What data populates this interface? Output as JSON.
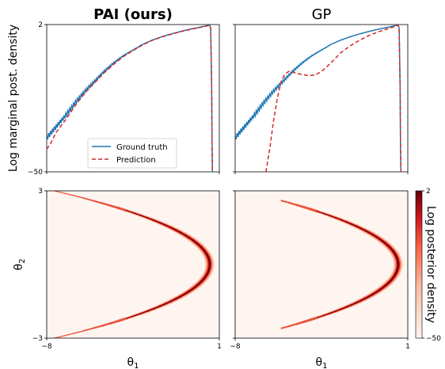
{
  "chart_data": [
    {
      "type": "line",
      "panel": "top-left",
      "title": "PAI (ours)",
      "title_bold": true,
      "ylabel": "Log marginal post. density",
      "xlim": [
        -8,
        1
      ],
      "ylim": [
        -50,
        2
      ],
      "yticks": [
        "2",
        "−50"
      ],
      "legend": {
        "placement": "lower-center",
        "entries": [
          "Ground truth",
          "Prediction"
        ]
      },
      "series": [
        {
          "name": "Ground truth",
          "color": "#1f77b4",
          "style": "solid",
          "x": [
            -8,
            -7.5,
            -7,
            -6.5,
            -6,
            -5.5,
            -5,
            -4.5,
            -4,
            -3.5,
            -3,
            -2.5,
            -2,
            -1.5,
            -1,
            -0.5,
            0,
            0.35,
            0.5,
            0.55,
            0.6,
            0.62,
            0.64,
            0.66
          ],
          "y": [
            -38,
            -34,
            -30,
            -25.5,
            -21.5,
            -18,
            -14.5,
            -11.5,
            -9,
            -7,
            -5,
            -3.5,
            -2.3,
            -1.3,
            -0.4,
            0.4,
            1.1,
            1.6,
            1.9,
            0.5,
            -20,
            -40,
            -50,
            -50
          ]
        },
        {
          "name": "Prediction",
          "color": "#d62728",
          "style": "dashed",
          "x": [
            -8,
            -7.8,
            -7.5,
            -7,
            -6.5,
            -6,
            -5.5,
            -5,
            -4.5,
            -4,
            -3.5,
            -3,
            -2.5,
            -2,
            -1.5,
            -1,
            -0.5,
            0,
            0.35,
            0.5,
            0.55,
            0.6,
            0.62,
            0.64,
            0.66
          ],
          "y": [
            -42,
            -40,
            -36,
            -31.5,
            -26.5,
            -22,
            -18.5,
            -15,
            -12,
            -9.3,
            -7.2,
            -5.2,
            -3.6,
            -2.4,
            -1.4,
            -0.5,
            0.3,
            1.0,
            1.5,
            1.8,
            0.5,
            -20,
            -40,
            -50,
            -50
          ]
        }
      ]
    },
    {
      "type": "line",
      "panel": "top-right",
      "title": "GP",
      "title_bold": false,
      "xlim": [
        -8,
        1
      ],
      "ylim": [
        -50,
        2
      ],
      "series": [
        {
          "name": "Ground truth",
          "color": "#1f77b4",
          "style": "solid",
          "x": [
            -8,
            -7.5,
            -7,
            -6.5,
            -6,
            -5.5,
            -5,
            -4.5,
            -4,
            -3.5,
            -3,
            -2.5,
            -2,
            -1.5,
            -1,
            -0.5,
            0,
            0.35,
            0.5,
            0.55,
            0.6,
            0.62,
            0.64,
            0.66
          ],
          "y": [
            -38,
            -34,
            -30,
            -25.5,
            -21.5,
            -18,
            -14.5,
            -11.5,
            -9,
            -7,
            -5,
            -3.5,
            -2.3,
            -1.3,
            -0.4,
            0.4,
            1.1,
            1.6,
            1.9,
            0.5,
            -20,
            -40,
            -50,
            -50
          ]
        },
        {
          "name": "Prediction",
          "color": "#d62728",
          "style": "dashed",
          "x": [
            -6.4,
            -6.2,
            -6,
            -5.8,
            -5.6,
            -5.4,
            -5.2,
            -5,
            -4.6,
            -4.2,
            -3.8,
            -3.4,
            -3,
            -2.5,
            -2,
            -1.5,
            -1,
            -0.5,
            0,
            0.35,
            0.5,
            0.55,
            0.6,
            0.62,
            0.64,
            0.66
          ],
          "y": [
            -50,
            -42,
            -32,
            -24,
            -18,
            -15.5,
            -14.5,
            -14.8,
            -15.5,
            -16,
            -15.8,
            -14,
            -11.5,
            -8,
            -5.5,
            -3.5,
            -1.8,
            -0.5,
            0.6,
            1.4,
            1.8,
            0.5,
            -20,
            -40,
            -50,
            -50
          ]
        }
      ]
    },
    {
      "type": "heatmap",
      "panel": "bottom-left",
      "xlabel": "θ1",
      "ylabel": "θ2",
      "xlim": [
        -8,
        1
      ],
      "ylim": [
        -3,
        3
      ],
      "xticks": [
        "−8",
        "1"
      ],
      "yticks": [
        "3",
        "−3"
      ],
      "ridge": {
        "vertex_x": 0.5,
        "curvature": 0.9,
        "theta2_range": [
          -3,
          3
        ]
      }
    },
    {
      "type": "heatmap",
      "panel": "bottom-right",
      "xlabel": "θ1",
      "xlim": [
        -8,
        1
      ],
      "ylim": [
        -3,
        3
      ],
      "xticks": [
        "−8",
        "1"
      ],
      "ridge": {
        "vertex_x": 0.5,
        "curvature": 0.9,
        "theta2_range": [
          -2.6,
          2.6
        ]
      }
    }
  ],
  "colorbar": {
    "label": "Log posterior density",
    "ticks": [
      "2",
      "−50"
    ],
    "range": [
      -50,
      2
    ],
    "colors": [
      "#fff5f0",
      "#fcbba1",
      "#fb6a4a",
      "#cb181d",
      "#67000d"
    ]
  }
}
